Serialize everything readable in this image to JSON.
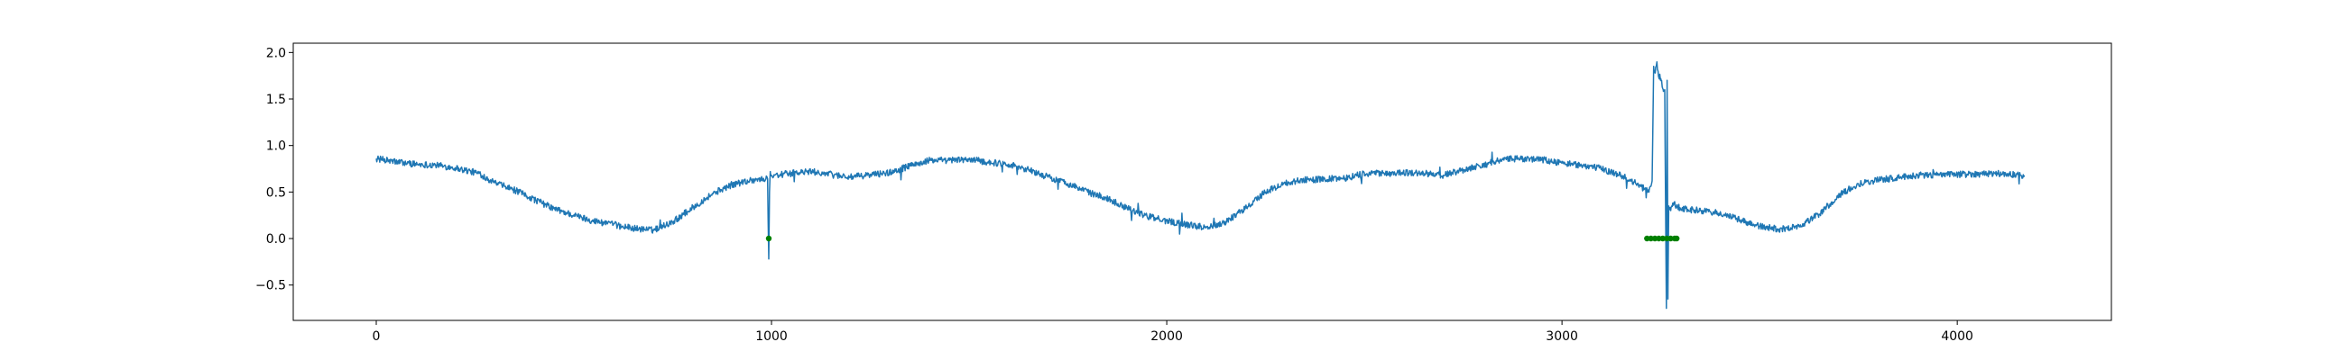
{
  "chart_data": {
    "type": "line",
    "title": "",
    "xlabel": "",
    "ylabel": "",
    "xlim": [
      -210,
      4390
    ],
    "ylim": [
      -0.88,
      2.1
    ],
    "grid": false,
    "x_ticks": [
      0,
      1000,
      2000,
      3000,
      4000
    ],
    "y_ticks": [
      -0.5,
      0.0,
      0.5,
      1.0,
      1.5,
      2.0
    ],
    "x_tick_labels": [
      "0",
      "1000",
      "2000",
      "3000",
      "4000"
    ],
    "y_tick_labels": [
      "−0.5",
      "0.0",
      "0.5",
      "1.0",
      "1.5",
      "2.0"
    ],
    "colors": {
      "signal": "#1f77b4",
      "markers": "#008000"
    },
    "noise_amplitude": 0.035,
    "series": [
      {
        "kind": "line",
        "x": [
          0,
          40,
          100,
          150,
          200,
          260,
          300,
          350,
          400,
          450,
          500,
          550,
          600,
          650,
          700,
          750,
          800,
          850,
          900,
          950,
          990,
          993,
          995,
          997,
          1000,
          1050,
          1100,
          1200,
          1300,
          1350,
          1400,
          1450,
          1500,
          1550,
          1600,
          1650,
          1700,
          1750,
          1800,
          1850,
          1900,
          1950,
          2000,
          2050,
          2100,
          2150,
          2200,
          2250,
          2300,
          2350,
          2400,
          2450,
          2500,
          2550,
          2600,
          2650,
          2700,
          2750,
          2800,
          2850,
          2900,
          2950,
          3000,
          3050,
          3100,
          3150,
          3200,
          3220,
          3228,
          3232,
          3236,
          3240,
          3244,
          3250,
          3256,
          3260,
          3264,
          3266,
          3268,
          3270,
          3275,
          3280,
          3300,
          3350,
          3400,
          3450,
          3500,
          3550,
          3600,
          3650,
          3700,
          3750,
          3800,
          3900,
          4000,
          4100,
          4170
        ],
        "y": [
          0.86,
          0.83,
          0.8,
          0.79,
          0.76,
          0.7,
          0.6,
          0.52,
          0.42,
          0.32,
          0.25,
          0.19,
          0.15,
          0.11,
          0.09,
          0.18,
          0.33,
          0.48,
          0.58,
          0.63,
          0.64,
          -0.22,
          0.5,
          0.72,
          0.68,
          0.7,
          0.72,
          0.66,
          0.71,
          0.78,
          0.84,
          0.84,
          0.85,
          0.82,
          0.8,
          0.74,
          0.66,
          0.59,
          0.5,
          0.43,
          0.33,
          0.24,
          0.19,
          0.15,
          0.12,
          0.18,
          0.33,
          0.5,
          0.6,
          0.63,
          0.64,
          0.65,
          0.7,
          0.7,
          0.71,
          0.7,
          0.68,
          0.74,
          0.79,
          0.85,
          0.86,
          0.85,
          0.81,
          0.79,
          0.75,
          0.68,
          0.56,
          0.5,
          0.62,
          1.85,
          1.78,
          1.9,
          1.75,
          1.72,
          1.6,
          1.6,
          -0.75,
          1.7,
          -0.65,
          0.35,
          0.3,
          0.38,
          0.32,
          0.3,
          0.27,
          0.2,
          0.13,
          0.1,
          0.13,
          0.26,
          0.46,
          0.59,
          0.63,
          0.68,
          0.69,
          0.7,
          0.68
        ]
      },
      {
        "kind": "scatter",
        "x": [
          993,
          3215,
          3225,
          3235,
          3245,
          3255,
          3265,
          3275,
          3285,
          3290
        ],
        "y": [
          0,
          0,
          0,
          0,
          0,
          0,
          0,
          0,
          0,
          0
        ]
      }
    ]
  }
}
